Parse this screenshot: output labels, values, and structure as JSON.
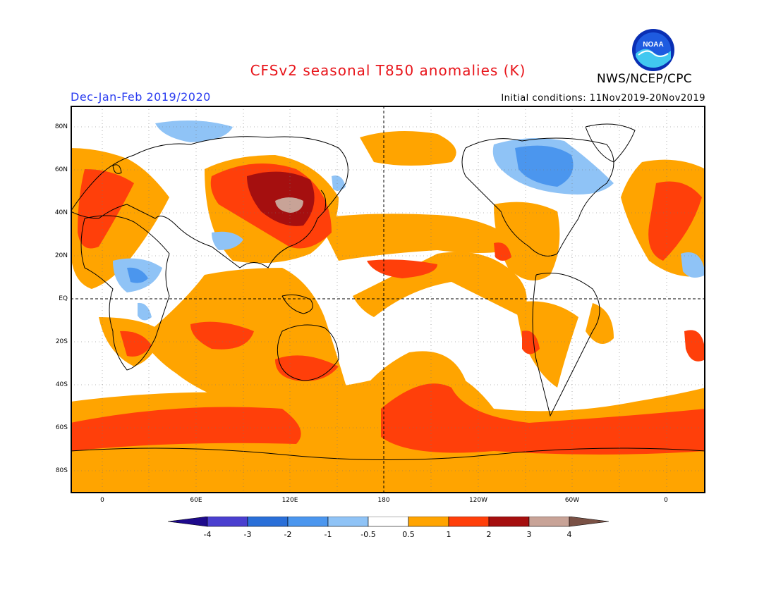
{
  "header": {
    "title": "CFSv2 seasonal T850 anomalies (K)",
    "period": "Dec-Jan-Feb 2019/2020",
    "initial_conditions": "Initial conditions: 11Nov2019-20Nov2019",
    "agency": "NWS/NCEP/CPC",
    "logo_text": "NOAA"
  },
  "axes": {
    "lat_labels": [
      "80N",
      "60N",
      "40N",
      "20N",
      "EQ",
      "20S",
      "40S",
      "60S",
      "80S"
    ],
    "lon_labels": [
      "0",
      "60E",
      "120E",
      "180",
      "120W",
      "60W",
      "0"
    ]
  },
  "colorbar": {
    "labels": [
      "-4",
      "-3",
      "-2",
      "-1",
      "-0.5",
      "0.5",
      "1",
      "2",
      "3",
      "4"
    ],
    "colors": [
      "#1e0a8c",
      "#4a3fcf",
      "#2a6fd8",
      "#4b96ee",
      "#8fc3f6",
      "#ffffff",
      "#ffa400",
      "#ff3f0a",
      "#a50f0f",
      "#c8a397",
      "#7a5145"
    ]
  }
}
